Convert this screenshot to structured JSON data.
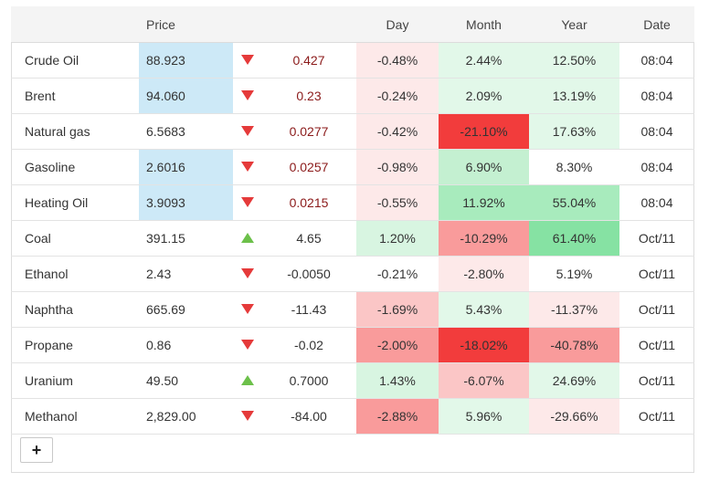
{
  "headers": {
    "name": "",
    "price": "Price",
    "arrow": "",
    "change": "",
    "day": "Day",
    "month": "Month",
    "year": "Year",
    "date": "Date"
  },
  "colors": {
    "price_highlight": "#cde9f7",
    "up_arrow": "#6cc04a",
    "down_arrow": "#e53a3a",
    "neg_strong": "#f23c3c",
    "neg_medium": "#f99b9b",
    "neg_light": "#fbc6c6",
    "neg_faint": "#fde9e9",
    "pos_strong": "#86e2a3",
    "pos_medium": "#c4f0d1",
    "pos_light": "#e2f8e9"
  },
  "rows": [
    {
      "name": "Crude Oil",
      "price": "88.923",
      "price_hl": true,
      "dir": "down",
      "change": "0.427",
      "change_neg": true,
      "day": "-0.48%",
      "day_bg": "#fde9e9",
      "month": "2.44%",
      "month_bg": "#e2f8e9",
      "year": "12.50%",
      "year_bg": "#e2f8e9",
      "date": "08:04"
    },
    {
      "name": "Brent",
      "price": "94.060",
      "price_hl": true,
      "dir": "down",
      "change": "0.23",
      "change_neg": true,
      "day": "-0.24%",
      "day_bg": "#fde9e9",
      "month": "2.09%",
      "month_bg": "#e2f8e9",
      "year": "13.19%",
      "year_bg": "#e2f8e9",
      "date": "08:04"
    },
    {
      "name": "Natural gas",
      "price": "6.5683",
      "price_hl": false,
      "dir": "down",
      "change": "0.0277",
      "change_neg": true,
      "day": "-0.42%",
      "day_bg": "#fde9e9",
      "month": "-21.10%",
      "month_bg": "#f23c3c",
      "year": "17.63%",
      "year_bg": "#e2f8e9",
      "date": "08:04"
    },
    {
      "name": "Gasoline",
      "price": "2.6016",
      "price_hl": true,
      "dir": "down",
      "change": "0.0257",
      "change_neg": true,
      "day": "-0.98%",
      "day_bg": "#fde9e9",
      "month": "6.90%",
      "month_bg": "#c4f0d1",
      "year": "8.30%",
      "year_bg": "#ffffff",
      "date": "08:04"
    },
    {
      "name": "Heating Oil",
      "price": "3.9093",
      "price_hl": true,
      "dir": "down",
      "change": "0.0215",
      "change_neg": true,
      "day": "-0.55%",
      "day_bg": "#fde9e9",
      "month": "11.92%",
      "month_bg": "#a8ebbd",
      "year": "55.04%",
      "year_bg": "#a8ebbd",
      "date": "08:04"
    },
    {
      "name": "Coal",
      "price": "391.15",
      "price_hl": false,
      "dir": "up",
      "change": "4.65",
      "change_neg": false,
      "day": "1.20%",
      "day_bg": "#d8f5e1",
      "month": "-10.29%",
      "month_bg": "#f99b9b",
      "year": "61.40%",
      "year_bg": "#86e2a3",
      "date": "Oct/11"
    },
    {
      "name": "Ethanol",
      "price": "2.43",
      "price_hl": false,
      "dir": "down",
      "change": "-0.0050",
      "change_neg": false,
      "day": "-0.21%",
      "day_bg": "#ffffff",
      "month": "-2.80%",
      "month_bg": "#fde9e9",
      "year": "5.19%",
      "year_bg": "#ffffff",
      "date": "Oct/11"
    },
    {
      "name": "Naphtha",
      "price": "665.69",
      "price_hl": false,
      "dir": "down",
      "change": "-11.43",
      "change_neg": false,
      "day": "-1.69%",
      "day_bg": "#fbc6c6",
      "month": "5.43%",
      "month_bg": "#e2f8e9",
      "year": "-11.37%",
      "year_bg": "#fde9e9",
      "date": "Oct/11"
    },
    {
      "name": "Propane",
      "price": "0.86",
      "price_hl": false,
      "dir": "down",
      "change": "-0.02",
      "change_neg": false,
      "day": "-2.00%",
      "day_bg": "#f99b9b",
      "month": "-18.02%",
      "month_bg": "#f23c3c",
      "year": "-40.78%",
      "year_bg": "#f99b9b",
      "date": "Oct/11"
    },
    {
      "name": "Uranium",
      "price": "49.50",
      "price_hl": false,
      "dir": "up",
      "change": "0.7000",
      "change_neg": false,
      "day": "1.43%",
      "day_bg": "#d8f5e1",
      "month": "-6.07%",
      "month_bg": "#fbc6c6",
      "year": "24.69%",
      "year_bg": "#e2f8e9",
      "date": "Oct/11"
    },
    {
      "name": "Methanol",
      "price": "2,829.00",
      "price_hl": false,
      "dir": "down",
      "change": "-84.00",
      "change_neg": false,
      "day": "-2.88%",
      "day_bg": "#f99b9b",
      "month": "5.96%",
      "month_bg": "#e2f8e9",
      "year": "-29.66%",
      "year_bg": "#fde9e9",
      "date": "Oct/11"
    }
  ],
  "add_button": {
    "label": "+",
    "icon": "plus-icon"
  }
}
